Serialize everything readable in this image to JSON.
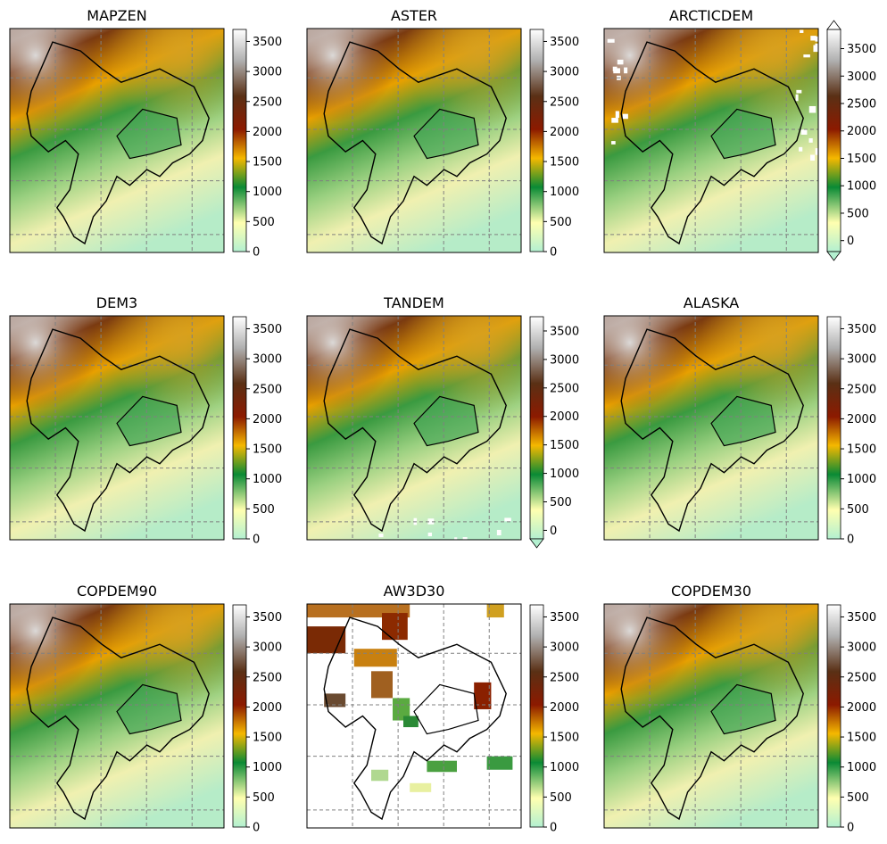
{
  "figure": "DEM comparison grid",
  "chart_data": [
    {
      "type": "heatmap",
      "title": "MAPZEN",
      "colorbar": {
        "ticks": [
          0,
          500,
          1000,
          1500,
          2000,
          2500,
          3000,
          3500
        ],
        "range": [
          0,
          3700
        ],
        "extend": "neither"
      },
      "variant": "full"
    },
    {
      "type": "heatmap",
      "title": "ASTER",
      "colorbar": {
        "ticks": [
          0,
          500,
          1000,
          1500,
          2000,
          2500,
          3000,
          3500
        ],
        "range": [
          0,
          3700
        ],
        "extend": "neither"
      },
      "variant": "full"
    },
    {
      "type": "heatmap",
      "title": "ARCTICDEM",
      "colorbar": {
        "ticks": [
          0,
          500,
          1000,
          1500,
          2000,
          2500,
          3000,
          3500
        ],
        "range": [
          -200,
          3850
        ],
        "extend": "both"
      },
      "variant": "gaps"
    },
    {
      "type": "heatmap",
      "title": "DEM3",
      "colorbar": {
        "ticks": [
          0,
          500,
          1000,
          1500,
          2000,
          2500,
          3000,
          3500
        ],
        "range": [
          0,
          3700
        ],
        "extend": "neither"
      },
      "variant": "full"
    },
    {
      "type": "heatmap",
      "title": "TANDEM",
      "colorbar": {
        "ticks": [
          0,
          500,
          1000,
          1500,
          2000,
          2500,
          3000,
          3500
        ],
        "range": [
          -150,
          3750
        ],
        "extend": "min"
      },
      "variant": "specks"
    },
    {
      "type": "heatmap",
      "title": "ALASKA",
      "colorbar": {
        "ticks": [
          0,
          500,
          1000,
          1500,
          2000,
          2500,
          3000,
          3500
        ],
        "range": [
          0,
          3700
        ],
        "extend": "neither"
      },
      "variant": "full"
    },
    {
      "type": "heatmap",
      "title": "COPDEM90",
      "colorbar": {
        "ticks": [
          0,
          500,
          1000,
          1500,
          2000,
          2500,
          3000,
          3500
        ],
        "range": [
          0,
          3700
        ],
        "extend": "neither"
      },
      "variant": "full"
    },
    {
      "type": "heatmap",
      "title": "AW3D30",
      "colorbar": {
        "ticks": [
          0,
          500,
          1000,
          1500,
          2000,
          2500,
          3000,
          3500
        ],
        "range": [
          0,
          3700
        ],
        "extend": "neither"
      },
      "variant": "sparse"
    },
    {
      "type": "heatmap",
      "title": "COPDEM30",
      "colorbar": {
        "ticks": [
          0,
          500,
          1000,
          1500,
          2000,
          2500,
          3000,
          3500
        ],
        "range": [
          0,
          3700
        ],
        "extend": "neither"
      },
      "variant": "full"
    }
  ],
  "colormap": [
    "#b3f0d0",
    "#ffffb0",
    "#0a8a35",
    "#f5b800",
    "#8c1a00",
    "#5a3015",
    "#b0b0b0",
    "#ffffff"
  ]
}
